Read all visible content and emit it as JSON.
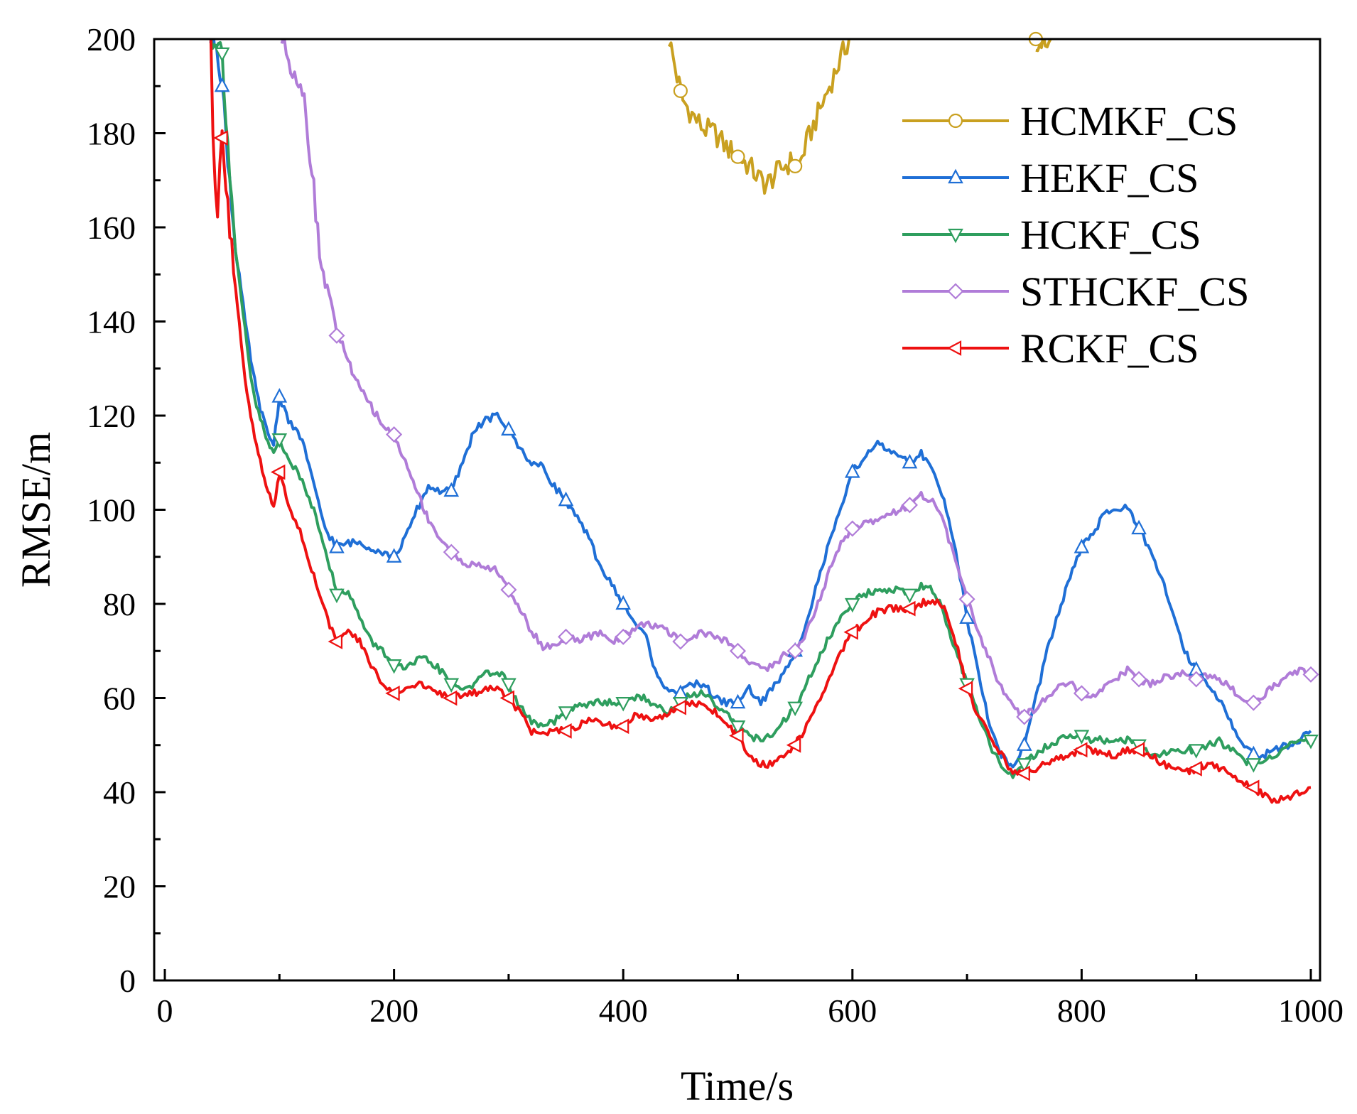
{
  "chart_data": {
    "type": "line",
    "title": "",
    "xlabel": "Time/s",
    "ylabel": "RMSE/m",
    "xlim": [
      0,
      1000
    ],
    "ylim": [
      0,
      200
    ],
    "xticks": [
      0,
      200,
      400,
      600,
      800,
      1000
    ],
    "yticks": [
      0,
      20,
      40,
      60,
      80,
      100,
      120,
      140,
      160,
      180,
      200
    ],
    "legend_position": "top-right",
    "grid": false,
    "series": [
      {
        "name": "HCMKF_CS",
        "color": "#C9A020",
        "marker": "circle",
        "x": [
          440,
          447,
          452,
          460,
          470,
          480,
          490,
          500,
          510,
          520,
          525,
          532,
          540,
          548,
          552,
          560,
          570,
          580,
          590,
          597,
          760,
          765,
          770,
          773
        ],
        "y": [
          200,
          192,
          187,
          184,
          181,
          180,
          177,
          175,
          173,
          170,
          169,
          171,
          173,
          174,
          172,
          178,
          184,
          190,
          196,
          200,
          200,
          199,
          198,
          200
        ],
        "segments": [
          [
            0,
            19
          ],
          [
            20,
            23
          ]
        ],
        "markers_x": [
          450,
          500,
          550,
          760
        ]
      },
      {
        "name": "HEKF_CS",
        "color": "#1F6FD6",
        "marker": "triangle-up",
        "x": [
          40,
          45,
          50,
          55,
          60,
          65,
          70,
          75,
          80,
          85,
          90,
          95,
          100,
          110,
          120,
          130,
          140,
          150,
          160,
          170,
          180,
          190,
          200,
          210,
          220,
          230,
          240,
          250,
          260,
          270,
          280,
          290,
          300,
          310,
          320,
          330,
          340,
          350,
          360,
          370,
          380,
          390,
          400,
          410,
          420,
          430,
          440,
          450,
          460,
          470,
          480,
          490,
          500,
          510,
          520,
          530,
          540,
          550,
          560,
          570,
          580,
          590,
          600,
          610,
          620,
          630,
          640,
          650,
          660,
          670,
          680,
          690,
          700,
          710,
          720,
          730,
          740,
          750,
          760,
          770,
          780,
          790,
          800,
          810,
          820,
          830,
          840,
          850,
          860,
          870,
          880,
          890,
          900,
          910,
          920,
          930,
          940,
          950,
          960,
          970,
          980,
          990,
          1000
        ],
        "y": [
          200,
          200,
          190,
          175,
          160,
          150,
          140,
          132,
          125,
          120,
          116,
          114,
          124,
          118,
          115,
          105,
          96,
          92,
          93,
          93,
          92,
          91,
          90,
          94,
          100,
          105,
          104,
          104,
          110,
          117,
          119,
          120,
          117,
          113,
          110,
          109,
          105,
          102,
          98,
          94,
          88,
          84,
          80,
          76,
          73,
          64,
          62,
          61,
          63,
          63,
          60,
          59,
          59,
          62,
          59,
          62,
          65,
          70,
          76,
          85,
          93,
          100,
          108,
          111,
          114,
          113,
          111,
          110,
          112,
          108,
          102,
          92,
          77,
          65,
          54,
          48,
          45,
          50,
          60,
          70,
          78,
          86,
          92,
          95,
          99,
          100,
          101,
          96,
          91,
          85,
          78,
          70,
          66,
          63,
          60,
          55,
          50,
          48,
          48,
          49,
          50,
          51,
          53
        ],
        "markers_x": [
          50,
          100,
          150,
          200,
          250,
          300,
          350,
          400,
          450,
          500,
          550,
          600,
          650,
          700,
          750,
          800,
          850,
          900,
          950
        ]
      },
      {
        "name": "HCKF_CS",
        "color": "#2E9E5E",
        "marker": "triangle-down",
        "x": [
          40,
          45,
          50,
          55,
          60,
          65,
          70,
          75,
          80,
          85,
          90,
          95,
          100,
          110,
          120,
          130,
          140,
          150,
          160,
          170,
          180,
          190,
          200,
          210,
          220,
          230,
          240,
          250,
          260,
          270,
          280,
          290,
          300,
          310,
          320,
          330,
          340,
          350,
          360,
          370,
          380,
          390,
          400,
          410,
          420,
          430,
          440,
          450,
          460,
          470,
          480,
          490,
          500,
          510,
          520,
          530,
          540,
          550,
          560,
          570,
          580,
          590,
          600,
          610,
          620,
          630,
          640,
          650,
          660,
          670,
          680,
          690,
          700,
          710,
          720,
          730,
          740,
          750,
          760,
          770,
          780,
          790,
          800,
          810,
          820,
          830,
          840,
          850,
          860,
          870,
          880,
          890,
          900,
          910,
          920,
          930,
          940,
          950,
          960,
          970,
          980,
          990,
          1000
        ],
        "y": [
          200,
          200,
          197,
          178,
          160,
          148,
          138,
          128,
          122,
          118,
          114,
          112,
          115,
          110,
          106,
          100,
          92,
          82,
          83,
          77,
          72,
          70,
          67,
          66,
          68,
          68,
          66,
          63,
          62,
          63,
          65,
          66,
          63,
          58,
          55,
          54,
          55,
          57,
          58,
          59,
          59,
          59,
          59,
          60,
          60,
          58,
          57,
          59,
          61,
          61,
          59,
          57,
          54,
          52,
          51,
          52,
          55,
          58,
          63,
          68,
          73,
          77,
          80,
          82,
          83,
          83,
          83,
          82,
          84,
          83,
          78,
          70,
          63,
          56,
          50,
          46,
          43,
          46,
          48,
          50,
          51,
          52,
          52,
          51,
          51,
          51,
          51,
          50,
          48,
          48,
          49,
          49,
          49,
          50,
          51,
          49,
          47,
          46,
          47,
          48,
          50,
          51,
          51
        ],
        "markers_x": [
          50,
          100,
          150,
          200,
          250,
          300,
          350,
          400,
          450,
          500,
          550,
          600,
          650,
          700,
          750,
          800,
          850,
          900,
          950,
          1000
        ]
      },
      {
        "name": "STHCKF_CS",
        "color": "#B07CD8",
        "marker": "diamond",
        "x": [
          102,
          108,
          115,
          120,
          125,
          130,
          135,
          140,
          145,
          150,
          155,
          160,
          165,
          170,
          175,
          180,
          185,
          190,
          195,
          200,
          205,
          210,
          215,
          220,
          225,
          230,
          240,
          250,
          260,
          270,
          280,
          290,
          300,
          310,
          320,
          330,
          340,
          350,
          360,
          370,
          380,
          390,
          400,
          410,
          420,
          430,
          440,
          450,
          460,
          470,
          480,
          490,
          500,
          510,
          520,
          530,
          540,
          550,
          560,
          570,
          580,
          590,
          600,
          610,
          620,
          630,
          640,
          650,
          660,
          670,
          680,
          690,
          700,
          710,
          720,
          730,
          740,
          750,
          760,
          770,
          780,
          790,
          800,
          810,
          820,
          830,
          840,
          850,
          860,
          870,
          880,
          890,
          900,
          910,
          920,
          930,
          940,
          950,
          960,
          970,
          980,
          990,
          1000
        ],
        "y": [
          200,
          196,
          192,
          190,
          180,
          168,
          155,
          148,
          145,
          137,
          135,
          132,
          128,
          126,
          124,
          122,
          120,
          118,
          117,
          116,
          113,
          110,
          107,
          104,
          101,
          98,
          94,
          91,
          89,
          88,
          88,
          87,
          83,
          79,
          74,
          71,
          71,
          73,
          72,
          73,
          74,
          72,
          73,
          75,
          76,
          75,
          74,
          72,
          73,
          74,
          73,
          72,
          70,
          68,
          66,
          67,
          69,
          70,
          74,
          80,
          87,
          93,
          96,
          97,
          98,
          99,
          100,
          101,
          103,
          102,
          97,
          89,
          81,
          74,
          68,
          62,
          58,
          56,
          58,
          60,
          62,
          63,
          61,
          60,
          62,
          64,
          66,
          64,
          63,
          64,
          65,
          65,
          64,
          65,
          64,
          62,
          60,
          59,
          61,
          63,
          65,
          66,
          65
        ],
        "markers_x": [
          150,
          200,
          250,
          300,
          350,
          400,
          450,
          500,
          550,
          600,
          650,
          700,
          750,
          800,
          850,
          900,
          950,
          1000
        ]
      },
      {
        "name": "RCKF_CS",
        "color": "#EE1111",
        "marker": "triangle-left",
        "x": [
          40,
          42,
          44,
          46,
          48,
          50,
          55,
          60,
          65,
          70,
          75,
          80,
          85,
          90,
          95,
          100,
          110,
          120,
          130,
          140,
          150,
          160,
          170,
          180,
          190,
          200,
          210,
          220,
          230,
          240,
          250,
          260,
          270,
          280,
          290,
          300,
          310,
          320,
          330,
          340,
          350,
          360,
          370,
          380,
          390,
          400,
          410,
          420,
          430,
          440,
          450,
          460,
          470,
          480,
          490,
          500,
          510,
          520,
          530,
          540,
          550,
          560,
          570,
          580,
          590,
          600,
          610,
          620,
          630,
          640,
          650,
          660,
          670,
          680,
          690,
          700,
          710,
          720,
          730,
          740,
          750,
          760,
          770,
          780,
          790,
          800,
          810,
          820,
          830,
          840,
          850,
          860,
          870,
          880,
          890,
          900,
          910,
          920,
          930,
          940,
          950,
          960,
          970,
          980,
          990,
          1000
        ],
        "y": [
          200,
          180,
          168,
          160,
          172,
          179,
          165,
          150,
          140,
          128,
          120,
          114,
          108,
          104,
          100,
          108,
          100,
          94,
          86,
          78,
          72,
          74,
          72,
          67,
          63,
          61,
          62,
          63,
          62,
          61,
          60,
          61,
          61,
          62,
          62,
          60,
          57,
          53,
          52,
          53,
          53,
          54,
          55,
          55,
          54,
          54,
          56,
          56,
          56,
          57,
          58,
          59,
          59,
          57,
          55,
          52,
          48,
          46,
          46,
          48,
          50,
          54,
          59,
          64,
          70,
          74,
          76,
          78,
          79,
          79,
          79,
          80,
          81,
          79,
          72,
          62,
          56,
          52,
          48,
          44,
          44,
          45,
          46,
          47,
          48,
          49,
          49,
          48,
          48,
          49,
          49,
          48,
          46,
          45,
          44,
          45,
          46,
          45,
          44,
          42,
          41,
          39,
          38,
          39,
          40,
          41
        ],
        "markers_x": [
          50,
          100,
          150,
          200,
          250,
          300,
          350,
          400,
          450,
          500,
          550,
          600,
          650,
          700,
          750,
          800,
          850,
          900,
          950
        ]
      }
    ]
  }
}
